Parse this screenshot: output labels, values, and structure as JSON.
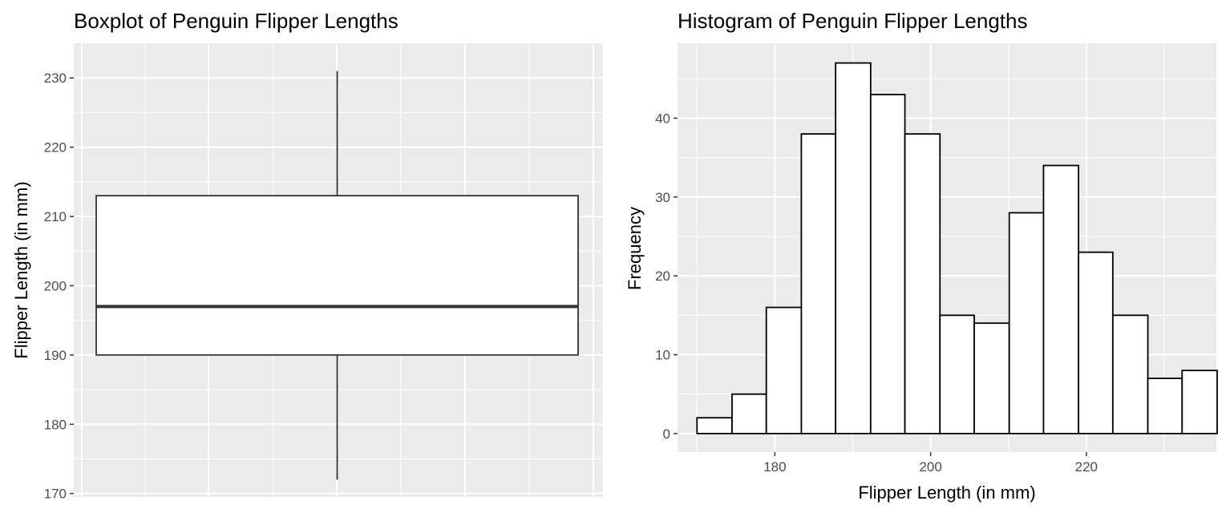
{
  "chart_data": [
    {
      "type": "box",
      "title": "Boxplot of Penguin Flipper Lengths",
      "xlabel": "",
      "ylabel": "Flipper Length (in mm)",
      "ylim": [
        169.5,
        235
      ],
      "yticks": [
        170,
        180,
        190,
        200,
        210,
        220,
        230
      ],
      "grid": true,
      "box": {
        "whisker_low": 172,
        "q1": 190,
        "median": 197,
        "q3": 213,
        "whisker_high": 231
      },
      "colors": {
        "panel": "#ebebeb",
        "grid": "#ffffff",
        "box_fill": "#ffffff",
        "box_line": "#333333"
      }
    },
    {
      "type": "histogram",
      "title": "Histogram of Penguin Flipper Lengths",
      "xlabel": "Flipper Length (in mm)",
      "ylabel": "Frequency",
      "xlim": [
        167.5,
        236.7
      ],
      "ylim": [
        -2.35,
        49.5
      ],
      "xticks": [
        180,
        200,
        220
      ],
      "yticks": [
        0,
        10,
        20,
        30,
        40
      ],
      "grid": true,
      "bins": [
        {
          "start": 170.0,
          "end": 174.5,
          "count": 2
        },
        {
          "start": 174.5,
          "end": 178.9,
          "count": 5
        },
        {
          "start": 178.9,
          "end": 183.4,
          "count": 16
        },
        {
          "start": 183.4,
          "end": 187.8,
          "count": 38
        },
        {
          "start": 187.8,
          "end": 192.3,
          "count": 47
        },
        {
          "start": 192.3,
          "end": 196.7,
          "count": 43
        },
        {
          "start": 196.7,
          "end": 201.2,
          "count": 38
        },
        {
          "start": 201.2,
          "end": 205.6,
          "count": 15
        },
        {
          "start": 205.6,
          "end": 210.1,
          "count": 14
        },
        {
          "start": 210.1,
          "end": 214.5,
          "count": 28
        },
        {
          "start": 214.5,
          "end": 219.0,
          "count": 34
        },
        {
          "start": 219.0,
          "end": 223.4,
          "count": 23
        },
        {
          "start": 223.4,
          "end": 227.9,
          "count": 15
        },
        {
          "start": 227.9,
          "end": 232.3,
          "count": 7
        },
        {
          "start": 232.3,
          "end": 236.8,
          "count": 8
        }
      ],
      "colors": {
        "panel": "#ebebeb",
        "grid": "#ffffff",
        "bar_fill": "#ffffff",
        "bar_line": "#000000"
      }
    }
  ]
}
